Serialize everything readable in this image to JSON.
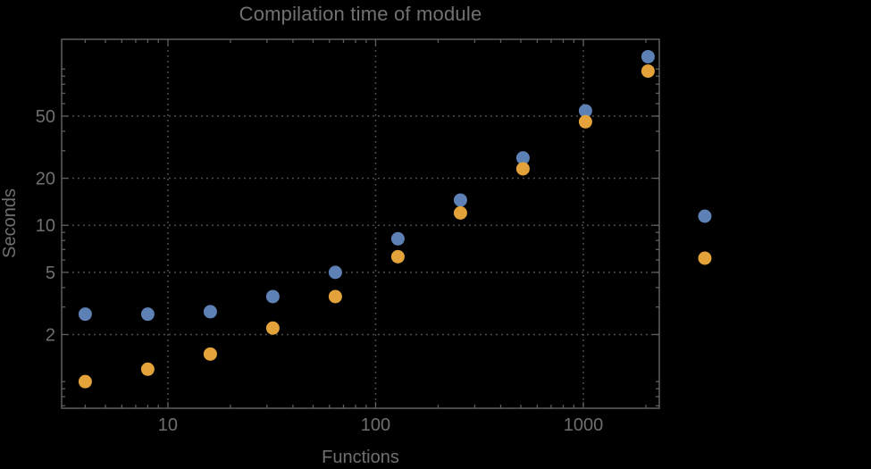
{
  "colors": {
    "background": "#000000",
    "frame": "#5f5f5f",
    "grid": "#555555",
    "tick": "#5f5f5f",
    "text": "#6f6f6f",
    "title": "#717171",
    "series_blue": "#5e81b5",
    "series_orange": "#e3a23a"
  },
  "chart_data": {
    "type": "scatter",
    "title": "Compilation time of module",
    "xlabel": "Functions",
    "ylabel": "Seconds",
    "xscale": "log",
    "yscale": "log",
    "xlim": [
      3.08,
      2320
    ],
    "ylim": [
      0.675,
      155
    ],
    "grid": "major-dotted",
    "x_major_ticks": [
      10,
      100,
      1000
    ],
    "x_major_labels": [
      "10",
      "100",
      "1000"
    ],
    "x_minor_ticks": [
      4,
      5,
      6,
      7,
      8,
      9,
      20,
      30,
      40,
      50,
      60,
      70,
      80,
      90,
      200,
      300,
      400,
      500,
      600,
      700,
      800,
      900,
      2000
    ],
    "y_major_ticks": [
      2,
      5,
      10,
      20,
      50
    ],
    "y_major_labels": [
      "2",
      "5",
      "10",
      "20",
      "50"
    ],
    "y_minor_ticks": [
      0.7,
      0.8,
      0.9,
      1,
      3,
      4,
      6,
      7,
      8,
      9,
      30,
      40,
      60,
      70,
      80,
      90,
      100
    ],
    "x": [
      4,
      8,
      16,
      32,
      64,
      128,
      256,
      512,
      1024,
      2048
    ],
    "series": [
      {
        "name": "series-1-blue",
        "color": "#5e81b5",
        "values": [
          2.7,
          2.7,
          2.8,
          3.5,
          5.0,
          8.2,
          14.5,
          27,
          54,
          120
        ]
      },
      {
        "name": "series-2-orange",
        "color": "#e3a23a",
        "values": [
          1.0,
          1.2,
          1.5,
          2.2,
          3.5,
          6.3,
          12,
          23,
          46,
          97
        ]
      }
    ],
    "legend": {
      "position": "right-outside",
      "labels_visible": false,
      "marker_colors": [
        "#5e81b5",
        "#e3a23a"
      ]
    }
  }
}
